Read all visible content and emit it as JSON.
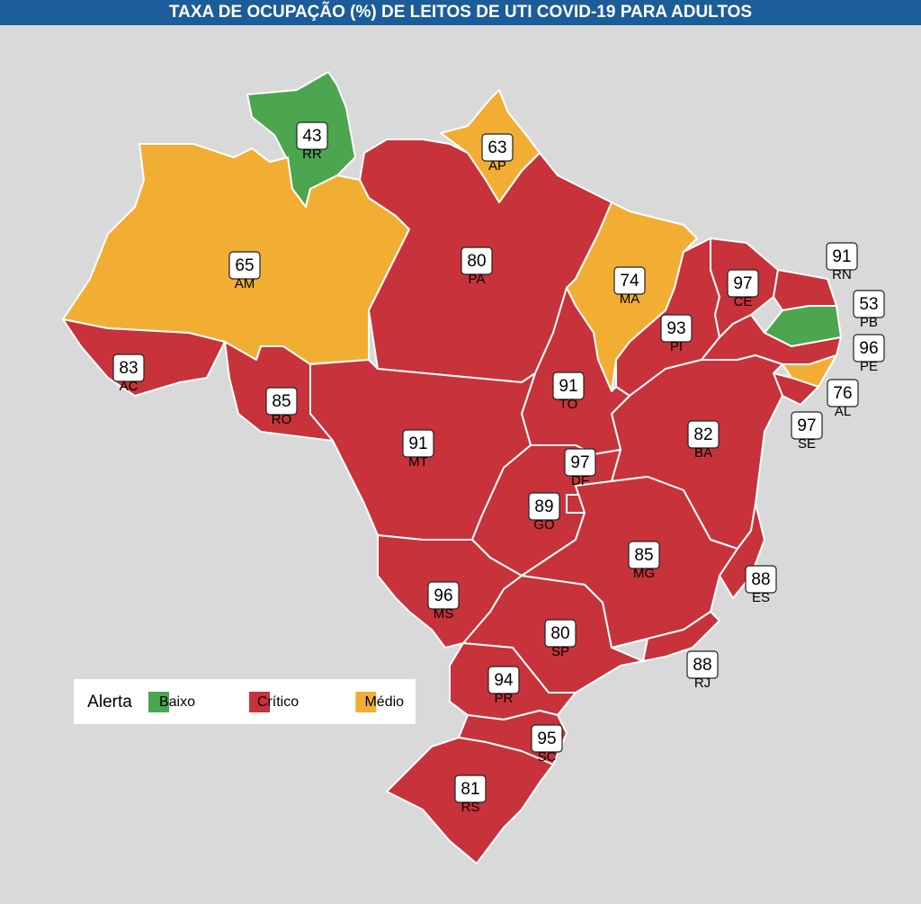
{
  "title": "TAXA DE OCUPAÇÃO (%) DE LEITOS DE UTI COVID-19 PARA ADULTOS",
  "legend": {
    "title": "Alerta",
    "items": [
      {
        "label": "Baixo",
        "color": "#4ba64f"
      },
      {
        "label": "Crítico",
        "color": "#c8323a"
      },
      {
        "label": "Médio",
        "color": "#f1ae33"
      }
    ]
  },
  "states": [
    {
      "code": "RR",
      "value": 43,
      "color": "#4ba64f"
    },
    {
      "code": "AP",
      "value": 63,
      "color": "#f1ae33"
    },
    {
      "code": "AM",
      "value": 65,
      "color": "#f1ae33"
    },
    {
      "code": "PA",
      "value": 80,
      "color": "#c8323a"
    },
    {
      "code": "MA",
      "value": 74,
      "color": "#f1ae33"
    },
    {
      "code": "PI",
      "value": 93,
      "color": "#c8323a"
    },
    {
      "code": "CE",
      "value": 97,
      "color": "#c8323a"
    },
    {
      "code": "RN",
      "value": 91,
      "color": "#c8323a"
    },
    {
      "code": "PB",
      "value": 53,
      "color": "#4ba64f"
    },
    {
      "code": "PE",
      "value": 96,
      "color": "#c8323a"
    },
    {
      "code": "AL",
      "value": 76,
      "color": "#f1ae33"
    },
    {
      "code": "SE",
      "value": 97,
      "color": "#c8323a"
    },
    {
      "code": "BA",
      "value": 82,
      "color": "#c8323a"
    },
    {
      "code": "TO",
      "value": 91,
      "color": "#c8323a"
    },
    {
      "code": "MT",
      "value": 91,
      "color": "#c8323a"
    },
    {
      "code": "RO",
      "value": 85,
      "color": "#c8323a"
    },
    {
      "code": "AC",
      "value": 83,
      "color": "#c8323a"
    },
    {
      "code": "GO",
      "value": 89,
      "color": "#c8323a"
    },
    {
      "code": "DF",
      "value": 97,
      "color": "#c8323a"
    },
    {
      "code": "MG",
      "value": 85,
      "color": "#c8323a"
    },
    {
      "code": "ES",
      "value": 88,
      "color": "#c8323a"
    },
    {
      "code": "RJ",
      "value": 88,
      "color": "#c8323a"
    },
    {
      "code": "SP",
      "value": 80,
      "color": "#c8323a"
    },
    {
      "code": "MS",
      "value": 96,
      "color": "#c8323a"
    },
    {
      "code": "PR",
      "value": 94,
      "color": "#c8323a"
    },
    {
      "code": "SC",
      "value": 95,
      "color": "#c8323a"
    },
    {
      "code": "RS",
      "value": 81,
      "color": "#c8323a"
    }
  ]
}
